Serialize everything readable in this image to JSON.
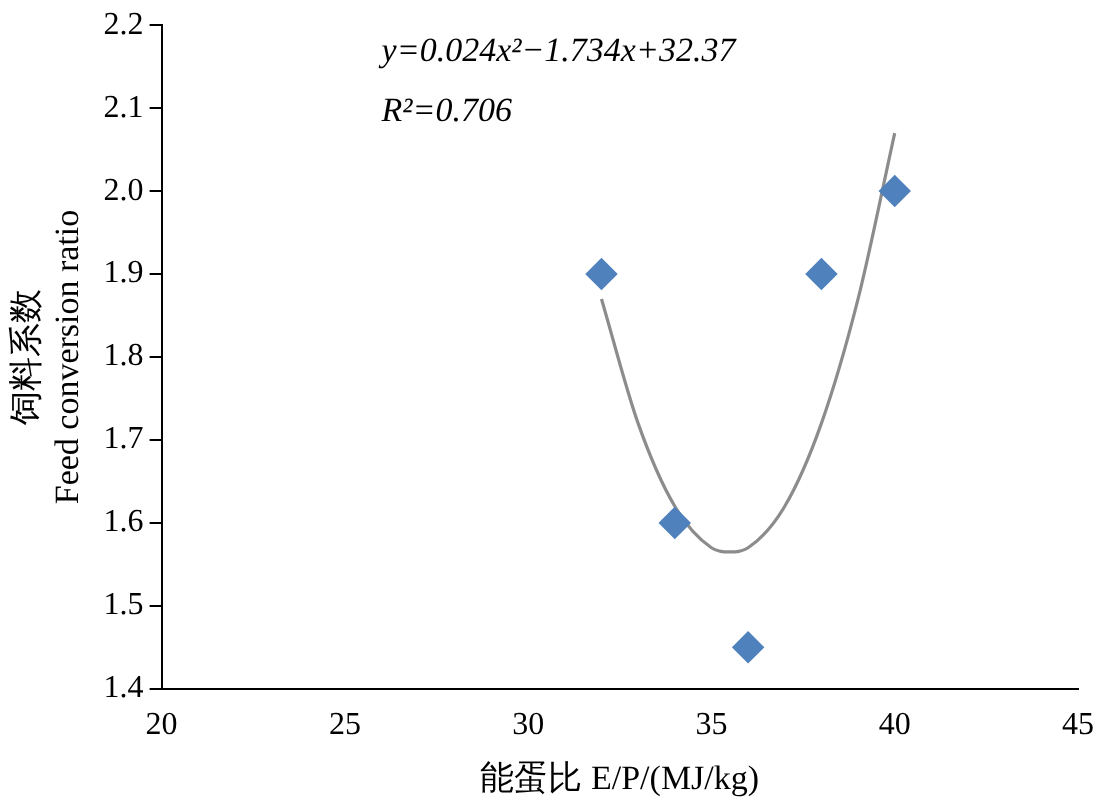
{
  "chart_data": {
    "type": "scatter",
    "xlabel": "能蛋比 E/P/(MJ/kg)",
    "ylabel": "饲料系数\nFeed conversion ratio",
    "xlim": [
      20,
      45
    ],
    "xticks": [
      20,
      25,
      30,
      35,
      40,
      45
    ],
    "ylim": [
      1.4,
      2.2
    ],
    "yticks": [
      1.4,
      1.5,
      1.6,
      1.7,
      1.8,
      1.9,
      {
        "value": 2,
        "label": "2.0"
      },
      2.1,
      2.2
    ],
    "grid": false,
    "annotations": [
      "y=0.024x²−1.734x+32.37",
      "R²=0.706"
    ],
    "series": [
      {
        "type": "scatter",
        "color": "#4f81bd",
        "marker": "diamond",
        "x": [
          32,
          34,
          36,
          38,
          40
        ],
        "values": [
          1.9,
          1.6,
          1.45,
          1.9,
          2.0
        ]
      },
      {
        "type": "line",
        "color": "#8c8c8c",
        "marker": "none",
        "line_style": "solid",
        "x": [
          32,
          33,
          34,
          35,
          35.5,
          36,
          37,
          38,
          39,
          40
        ],
        "values": [
          1.87,
          1.72,
          1.62,
          1.57,
          1.565,
          1.57,
          1.62,
          1.72,
          1.87,
          2.07
        ]
      }
    ]
  }
}
